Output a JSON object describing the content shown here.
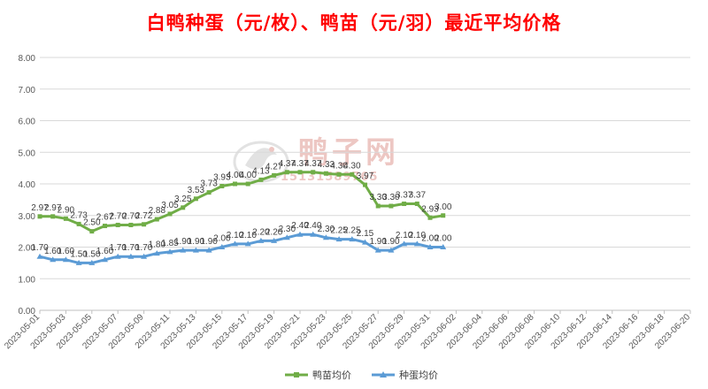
{
  "chart_data": {
    "type": "line",
    "title": "白鸭种蛋（元/枚）、鸭苗（元/羽）最近平均价格",
    "y_ticks": [
      "0.00",
      "1.00",
      "2.00",
      "3.00",
      "4.00",
      "5.00",
      "6.00",
      "7.00",
      "8.00"
    ],
    "ylim": [
      0,
      8
    ],
    "x_ticks": [
      "2023-05-01",
      "2023-05-03",
      "2023-05-05",
      "2023-05-07",
      "2023-05-09",
      "2023-05-11",
      "2023-05-13",
      "2023-05-15",
      "2023-05-17",
      "2023-05-19",
      "2023-05-21",
      "2023-05-23",
      "2023-05-25",
      "2023-05-27",
      "2023-05-29",
      "2023-05-31",
      "2023-06-02",
      "2023-06-04",
      "2023-06-06",
      "2023-06-08",
      "2023-06-10",
      "2023-06-12",
      "2023-06-14",
      "2023-06-16",
      "2023-06-18",
      "2023-06-20"
    ],
    "x_range": [
      "2023-05-01",
      "2023-06-20"
    ],
    "grid": "horizontal",
    "legend_position": "bottom",
    "series": [
      {
        "name": "鸭苗均价",
        "color": "#70ad47",
        "marker": "square",
        "points": [
          [
            "2023-05-01",
            2.97
          ],
          [
            "2023-05-02",
            2.97
          ],
          [
            "2023-05-03",
            2.9
          ],
          [
            "2023-05-04",
            2.73
          ],
          [
            "2023-05-05",
            2.5
          ],
          [
            "2023-05-06",
            2.67
          ],
          [
            "2023-05-07",
            2.7
          ],
          [
            "2023-05-08",
            2.7
          ],
          [
            "2023-05-09",
            2.72
          ],
          [
            "2023-05-10",
            2.88
          ],
          [
            "2023-05-11",
            3.05
          ],
          [
            "2023-05-12",
            3.25
          ],
          [
            "2023-05-13",
            3.53
          ],
          [
            "2023-05-14",
            3.73
          ],
          [
            "2023-05-15",
            3.93
          ],
          [
            "2023-05-16",
            4.0
          ],
          [
            "2023-05-17",
            4.0
          ],
          [
            "2023-05-18",
            4.13
          ],
          [
            "2023-05-19",
            4.27
          ],
          [
            "2023-05-20",
            4.37
          ],
          [
            "2023-05-21",
            4.37
          ],
          [
            "2023-05-22",
            4.37
          ],
          [
            "2023-05-23",
            4.33
          ],
          [
            "2023-05-24",
            4.3
          ],
          [
            "2023-05-25",
            4.3
          ],
          [
            "2023-05-26",
            3.97
          ],
          [
            "2023-05-27",
            3.3
          ],
          [
            "2023-05-28",
            3.3
          ],
          [
            "2023-05-29",
            3.37
          ],
          [
            "2023-05-30",
            3.37
          ],
          [
            "2023-05-31",
            2.93
          ],
          [
            "2023-06-01",
            3.0
          ]
        ]
      },
      {
        "name": "种蛋均价",
        "color": "#5b9bd5",
        "marker": "triangle",
        "points": [
          [
            "2023-05-01",
            1.7
          ],
          [
            "2023-05-02",
            1.6
          ],
          [
            "2023-05-03",
            1.6
          ],
          [
            "2023-05-04",
            1.5
          ],
          [
            "2023-05-05",
            1.5
          ],
          [
            "2023-05-06",
            1.6
          ],
          [
            "2023-05-07",
            1.7
          ],
          [
            "2023-05-08",
            1.7
          ],
          [
            "2023-05-09",
            1.7
          ],
          [
            "2023-05-10",
            1.8
          ],
          [
            "2023-05-11",
            1.85
          ],
          [
            "2023-05-12",
            1.9
          ],
          [
            "2023-05-13",
            1.9
          ],
          [
            "2023-05-14",
            1.9
          ],
          [
            "2023-05-15",
            2.0
          ],
          [
            "2023-05-16",
            2.1
          ],
          [
            "2023-05-17",
            2.1
          ],
          [
            "2023-05-18",
            2.2
          ],
          [
            "2023-05-19",
            2.2
          ],
          [
            "2023-05-20",
            2.3
          ],
          [
            "2023-05-21",
            2.4
          ],
          [
            "2023-05-22",
            2.4
          ],
          [
            "2023-05-23",
            2.3
          ],
          [
            "2023-05-24",
            2.25
          ],
          [
            "2023-05-25",
            2.25
          ],
          [
            "2023-05-26",
            2.15
          ],
          [
            "2023-05-27",
            1.9
          ],
          [
            "2023-05-28",
            1.9
          ],
          [
            "2023-05-29",
            2.1
          ],
          [
            "2023-05-30",
            2.1
          ],
          [
            "2023-05-31",
            2.0
          ],
          [
            "2023-06-01",
            2.0
          ]
        ]
      }
    ]
  },
  "watermark": {
    "brand": "鸭子网",
    "phone": "15131589765"
  }
}
